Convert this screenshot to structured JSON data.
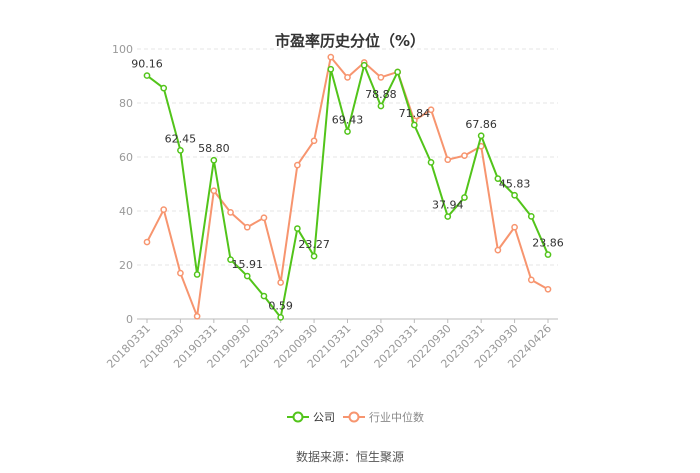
{
  "chart_data": {
    "type": "line",
    "title": "市盈率历史分位（%）",
    "source": "数据来源：恒生聚源",
    "ylim": [
      0,
      100
    ],
    "yticks": [
      0,
      20,
      40,
      60,
      80,
      100
    ],
    "x_tick_labels": [
      "20180331",
      "20180930",
      "20190331",
      "20190930",
      "20200331",
      "20200930",
      "20210331",
      "20210930",
      "20220331",
      "20220930",
      "20230331",
      "20230930",
      "20240426"
    ],
    "legend_position": "bottom-center",
    "series": [
      {
        "name": "公司",
        "color": "#52C41A",
        "values": [
          90.16,
          85.5,
          62.45,
          16.5,
          58.8,
          22,
          15.91,
          8.5,
          0.59,
          33.5,
          23.27,
          92.5,
          69.43,
          94,
          78.88,
          91.5,
          71.84,
          58,
          37.94,
          45,
          67.86,
          52,
          45.83,
          38,
          23.86
        ],
        "labels": {
          "0": "90.16",
          "2": "62.45",
          "4": "58.80",
          "6": "15.91",
          "8": "0.59",
          "10": "23.27",
          "12": "69.43",
          "14": "78.88",
          "16": "71.84",
          "18": "37.94",
          "20": "67.86",
          "22": "45.83",
          "24": "23.86"
        }
      },
      {
        "name": "行业中位数",
        "color": "#F7956F",
        "values": [
          28.5,
          40.5,
          17,
          1,
          47.5,
          39.5,
          34,
          37.5,
          13.5,
          57,
          66,
          97,
          89.5,
          95,
          89.5,
          91.5,
          73.5,
          77.5,
          59,
          60.5,
          64,
          25.5,
          34,
          14.5,
          11
        ],
        "labels": {}
      }
    ]
  }
}
